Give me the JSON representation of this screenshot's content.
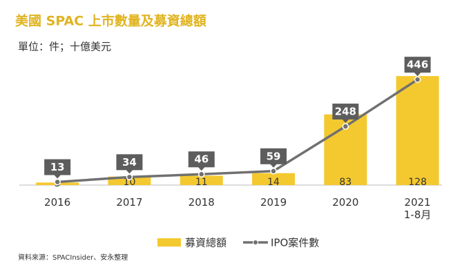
{
  "chart_data": {
    "type": "bar-line",
    "title": "美國 SPAC 上市數量及募資總額",
    "subtitle": "單位：件；十億美元",
    "source": "資料來源：SPACInsider、安永整理",
    "categories": [
      "2016",
      "2017",
      "2018",
      "2019",
      "2020",
      "2021\n1-8月"
    ],
    "series": [
      {
        "name": "募資總額",
        "type": "bar",
        "color": "#f4c92f",
        "values": [
          3,
          10,
          11,
          14,
          83,
          128
        ]
      },
      {
        "name": "IPO案件數",
        "type": "line",
        "axis": "y2",
        "color": "#707070",
        "values": [
          13,
          34,
          46,
          59,
          248,
          446
        ]
      }
    ],
    "ylim": [
      0,
      150
    ],
    "y2lim": [
      0,
      540
    ],
    "legend": "bottom"
  }
}
